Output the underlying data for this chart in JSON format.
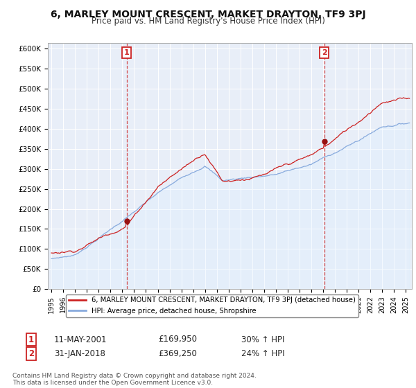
{
  "title": "6, MARLEY MOUNT CRESCENT, MARKET DRAYTON, TF9 3PJ",
  "subtitle": "Price paid vs. HM Land Registry's House Price Index (HPI)",
  "title_fontsize": 10,
  "subtitle_fontsize": 8.5,
  "ylabel_ticks": [
    "£0",
    "£50K",
    "£100K",
    "£150K",
    "£200K",
    "£250K",
    "£300K",
    "£350K",
    "£400K",
    "£450K",
    "£500K",
    "£550K",
    "£600K"
  ],
  "ytick_vals": [
    0,
    50000,
    100000,
    150000,
    200000,
    250000,
    300000,
    350000,
    400000,
    450000,
    500000,
    550000,
    600000
  ],
  "ylim": [
    0,
    615000
  ],
  "xlim_start": 1994.7,
  "xlim_end": 2025.5,
  "line1_color": "#cc2222",
  "line2_color": "#88aadd",
  "line2_fill_color": "#ddeeff",
  "background_color": "#e8eef8",
  "plot_bg_color": "#e8eef8",
  "grid_color": "#ffffff",
  "legend_label1": "6, MARLEY MOUNT CRESCENT, MARKET DRAYTON, TF9 3PJ (detached house)",
  "legend_label2": "HPI: Average price, detached house, Shropshire",
  "sale1_label": "1",
  "sale1_date": "11-MAY-2001",
  "sale1_price": "£169,950",
  "sale1_hpi": "30% ↑ HPI",
  "sale1_x": 2001.36,
  "sale1_y": 169950,
  "sale2_label": "2",
  "sale2_date": "31-JAN-2018",
  "sale2_price": "£369,250",
  "sale2_hpi": "24% ↑ HPI",
  "sale2_x": 2018.08,
  "sale2_y": 369250,
  "vline1_x": 2001.36,
  "vline2_x": 2018.08,
  "footer": "Contains HM Land Registry data © Crown copyright and database right 2024.\nThis data is licensed under the Open Government Licence v3.0.",
  "sale_marker_color": "#991111",
  "xtick_years": [
    1995,
    1996,
    1997,
    1998,
    1999,
    2000,
    2001,
    2002,
    2003,
    2004,
    2005,
    2006,
    2007,
    2008,
    2009,
    2010,
    2011,
    2012,
    2013,
    2014,
    2015,
    2016,
    2017,
    2018,
    2019,
    2020,
    2021,
    2022,
    2023,
    2024,
    2025
  ]
}
